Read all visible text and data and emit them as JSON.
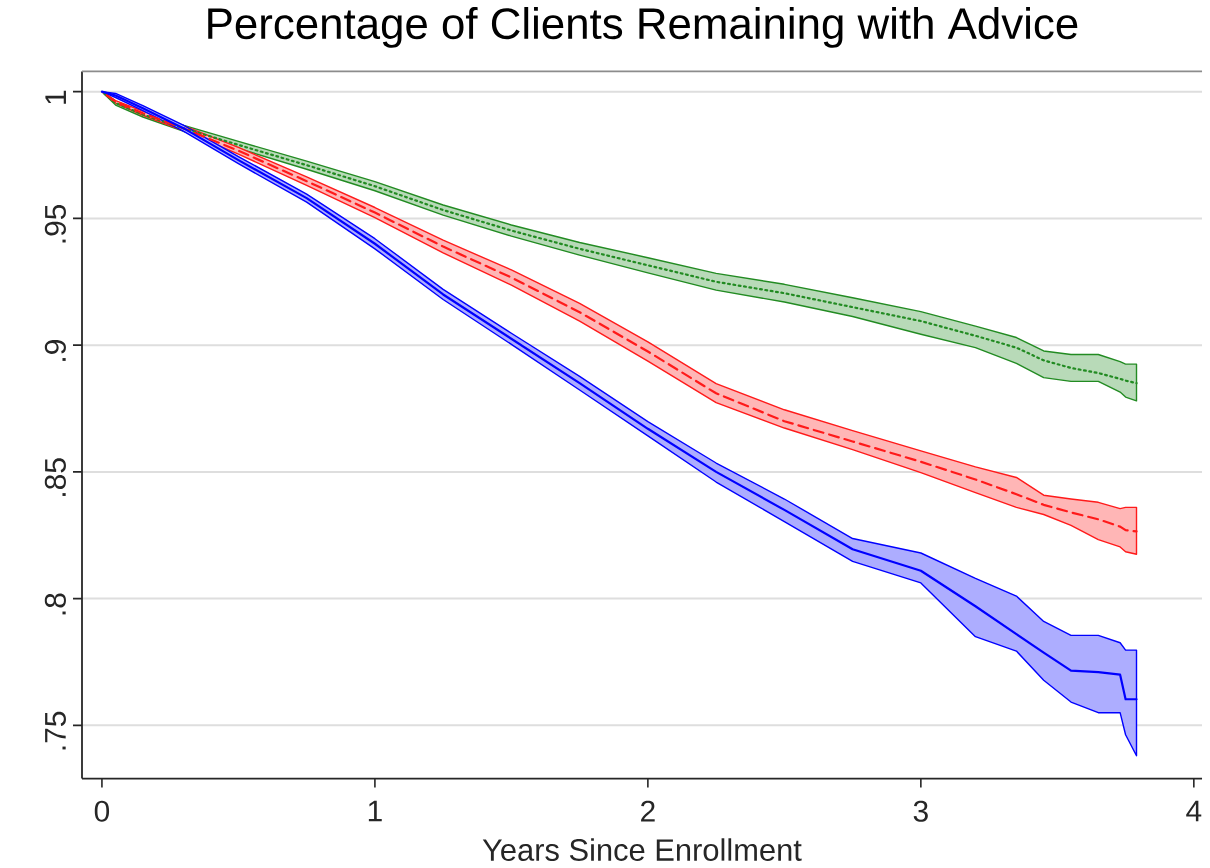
{
  "chart_data": {
    "type": "line",
    "title": "Percentage of Clients Remaining with Advice",
    "xlabel": "Years Since Enrollment",
    "x": [
      0,
      0.05,
      0.15,
      0.3,
      0.5,
      0.75,
      1,
      1.25,
      1.5,
      1.75,
      2,
      2.25,
      2.5,
      2.75,
      3,
      3.2,
      3.35,
      3.45,
      3.55,
      3.65,
      3.73,
      3.75,
      3.79
    ],
    "series": [
      {
        "color": "#228b22",
        "line_style": "dotted",
        "values": [
          1.0,
          0.9955,
          0.991,
          0.9855,
          0.979,
          0.971,
          0.9627,
          0.9533,
          0.9452,
          0.938,
          0.9315,
          0.925,
          0.9205,
          0.915,
          0.9095,
          0.9037,
          0.899,
          0.894,
          0.891,
          0.889,
          0.8867,
          0.886,
          0.885
        ],
        "lower": [
          1.0,
          0.9947,
          0.99,
          0.9843,
          0.9776,
          0.9694,
          0.9609,
          0.9513,
          0.943,
          0.9355,
          0.9285,
          0.9217,
          0.917,
          0.9113,
          0.9043,
          0.899,
          0.8928,
          0.8872,
          0.8857,
          0.8857,
          0.8815,
          0.8795,
          0.878
        ],
        "upper": [
          1.0,
          0.9963,
          0.992,
          0.9867,
          0.9804,
          0.9726,
          0.9645,
          0.9553,
          0.9474,
          0.9405,
          0.9345,
          0.9283,
          0.924,
          0.9187,
          0.9132,
          0.9075,
          0.903,
          0.8977,
          0.8963,
          0.8963,
          0.8935,
          0.8925,
          0.8925
        ]
      },
      {
        "color": "#ff1a1a",
        "line_style": "dashed",
        "values": [
          1.0,
          0.996,
          0.9915,
          0.9855,
          0.9767,
          0.9647,
          0.9523,
          0.9389,
          0.9267,
          0.913,
          0.8975,
          0.881,
          0.87,
          0.862,
          0.854,
          0.847,
          0.8412,
          0.837,
          0.834,
          0.8313,
          0.8284,
          0.827,
          0.8265
        ],
        "lower": [
          1.0,
          0.9955,
          0.9907,
          0.9845,
          0.9754,
          0.963,
          0.9503,
          0.9364,
          0.9237,
          0.9095,
          0.8937,
          0.8773,
          0.8673,
          0.8588,
          0.8497,
          0.8418,
          0.836,
          0.8332,
          0.8289,
          0.8233,
          0.8204,
          0.8185,
          0.8175
        ],
        "upper": [
          1.0,
          0.9965,
          0.9923,
          0.9865,
          0.978,
          0.9664,
          0.9543,
          0.9414,
          0.9297,
          0.9165,
          0.9013,
          0.8848,
          0.8745,
          0.8663,
          0.8583,
          0.852,
          0.8478,
          0.8408,
          0.8393,
          0.838,
          0.8355,
          0.836,
          0.836
        ]
      },
      {
        "color": "#0000ff",
        "line_style": "solid",
        "values": [
          1.0,
          0.9985,
          0.9935,
          0.9855,
          0.973,
          0.958,
          0.94,
          0.92,
          0.9025,
          0.885,
          0.867,
          0.85,
          0.835,
          0.8195,
          0.811,
          0.797,
          0.786,
          0.7787,
          0.7716,
          0.771,
          0.77,
          0.7603,
          0.7603
        ],
        "lower": [
          1.0,
          0.9977,
          0.9925,
          0.9843,
          0.9716,
          0.9564,
          0.938,
          0.918,
          0.9003,
          0.8823,
          0.8642,
          0.846,
          0.8304,
          0.8147,
          0.8062,
          0.785,
          0.7793,
          0.7678,
          0.7592,
          0.755,
          0.755,
          0.7463,
          0.738
        ],
        "upper": [
          1.0,
          0.9993,
          0.9945,
          0.9867,
          0.9744,
          0.9596,
          0.942,
          0.922,
          0.9047,
          0.8877,
          0.8698,
          0.8535,
          0.8393,
          0.8237,
          0.818,
          0.808,
          0.801,
          0.791,
          0.7855,
          0.7855,
          0.7826,
          0.7797,
          0.7797
        ]
      }
    ],
    "xlim": [
      -0.073,
      4.03
    ],
    "ylim": [
      0.729,
      1.008
    ],
    "xticks": [
      0,
      1,
      2,
      3,
      4
    ],
    "yticks": [
      {
        "value": 0.75,
        "label": ".75"
      },
      {
        "value": 0.8,
        "label": ".8"
      },
      {
        "value": 0.85,
        "label": ".85"
      },
      {
        "value": 0.9,
        "label": ".9"
      },
      {
        "value": 0.95,
        "label": ".95"
      },
      1
    ],
    "grid": "y"
  }
}
